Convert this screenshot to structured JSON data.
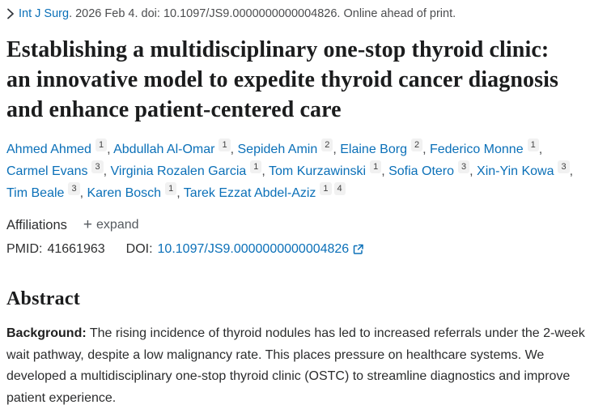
{
  "page": {
    "journal": {
      "name": "Int J Surg",
      "citation_rest": ". 2026 Feb 4. doi: 10.1097/JS9.0000000000004826. Online ahead of print."
    },
    "title": "Establishing a multidisciplinary one-stop thyroid clinic: an innovative model to expedite thyroid cancer diagnosis and enhance patient-centered care",
    "authors": [
      {
        "name": "Ahmed Ahmed",
        "sups": [
          "1"
        ]
      },
      {
        "name": "Abdullah Al-Omar",
        "sups": [
          "1"
        ]
      },
      {
        "name": "Sepideh Amin",
        "sups": [
          "2"
        ]
      },
      {
        "name": "Elaine Borg",
        "sups": [
          "2"
        ]
      },
      {
        "name": "Federico Monne",
        "sups": [
          "1"
        ]
      },
      {
        "name": "Carmel Evans",
        "sups": [
          "3"
        ]
      },
      {
        "name": "Virginia Rozalen Garcia",
        "sups": [
          "1"
        ]
      },
      {
        "name": "Tom Kurzawinski",
        "sups": [
          "1"
        ]
      },
      {
        "name": "Sofia Otero",
        "sups": [
          "3"
        ]
      },
      {
        "name": "Xin-Yin Kowa",
        "sups": [
          "3"
        ]
      },
      {
        "name": "Tim Beale",
        "sups": [
          "3"
        ]
      },
      {
        "name": "Karen Bosch",
        "sups": [
          "1"
        ]
      },
      {
        "name": "Tarek Ezzat Abdel-Aziz",
        "sups": [
          "1",
          "4"
        ]
      }
    ],
    "affiliations": {
      "label": "Affiliations",
      "expand": "expand",
      "plus": "+"
    },
    "identifiers": {
      "pmid_label": "PMID:",
      "pmid": "41661963",
      "doi_label": "DOI:",
      "doi": "10.1097/JS9.0000000000004826"
    },
    "abstract": {
      "heading": "Abstract",
      "sections": [
        {
          "label": "Background:",
          "text": " The rising incidence of thyroid nodules has led to increased referrals under the 2-week wait pathway, despite a low malignancy rate. This places pressure on healthcare systems. We developed a multidisciplinary one-stop thyroid clinic (OSTC) to streamline diagnostics and improve patient experience."
        }
      ]
    }
  },
  "colors": {
    "link_blue": "#0b70b8",
    "text_dark": "#212121",
    "meta_gray": "#4c4d4f",
    "title_color": "#1b1c1d",
    "sup_bg": "#f1f1f1",
    "sup_text": "#424242"
  }
}
